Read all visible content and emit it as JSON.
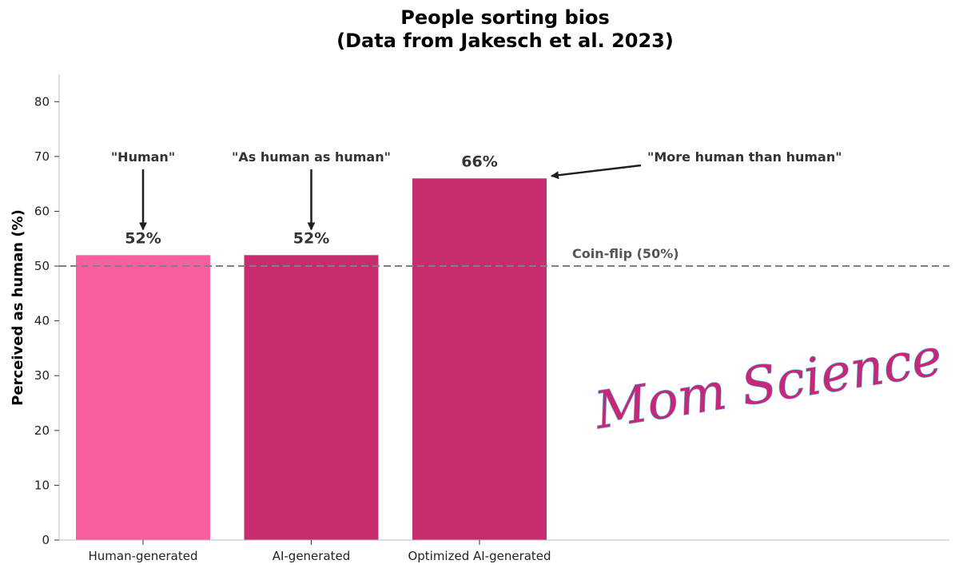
{
  "chart_data": {
    "type": "bar",
    "title_lines": [
      "People sorting bios",
      "(Data from Jakesch et al. 2023)"
    ],
    "xlabel": "",
    "ylabel": "Perceived as human (%)",
    "ylim": [
      0,
      85
    ],
    "yticks": [
      0,
      10,
      20,
      30,
      40,
      50,
      60,
      70,
      80
    ],
    "categories": [
      "Human-generated",
      "AI-generated",
      "Optimized AI-generated"
    ],
    "values": [
      52,
      52,
      66
    ],
    "value_labels": [
      "52%",
      "52%",
      "66%"
    ],
    "bar_colors": [
      "#f75f9f",
      "#c72c6f",
      "#c72c6f"
    ],
    "reference_line": {
      "value": 50,
      "label": "Coin-flip (50%)",
      "color": "#808080",
      "style": "dashed"
    },
    "annotations": [
      {
        "text": "\"Human\"",
        "target_category": "Human-generated",
        "arrow": "down"
      },
      {
        "text": "\"As human as human\"",
        "target_category": "AI-generated",
        "arrow": "down"
      },
      {
        "text": "\"More human than human\"",
        "target_category": "Optimized AI-generated",
        "arrow": "left"
      }
    ],
    "grid": false,
    "legend": "none"
  },
  "watermark": {
    "text": "Mom Science",
    "color": "#c7277a",
    "outline_color": "#5fc8d8"
  }
}
